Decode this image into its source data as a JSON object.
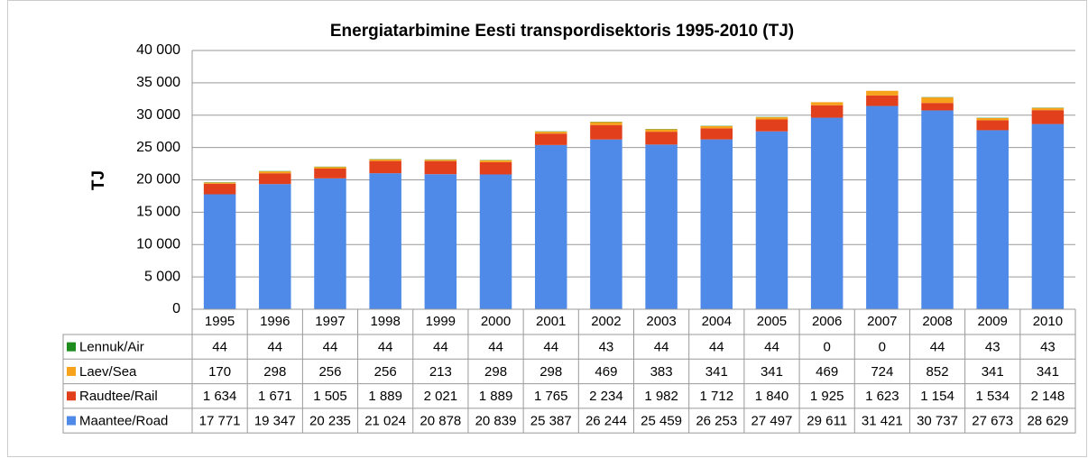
{
  "chart_data": {
    "type": "stacked_bar",
    "title": "Energiatarbimine Eesti  transpordisektoris 1995-2010 (TJ)",
    "y_label": "TJ",
    "categories": [
      "1995",
      "1996",
      "1997",
      "1998",
      "1999",
      "2000",
      "2001",
      "2002",
      "2003",
      "2004",
      "2005",
      "2006",
      "2007",
      "2008",
      "2009",
      "2010"
    ],
    "series": [
      {
        "name": "Maantee/Road",
        "color": "#4f8ae8",
        "values": [
          17771,
          19347,
          20235,
          21024,
          20878,
          20839,
          25387,
          26244,
          25459,
          26253,
          27497,
          29611,
          31421,
          30737,
          27673,
          28629
        ],
        "value_labels": [
          "17 771",
          "19 347",
          "20 235",
          "21 024",
          "20 878",
          "20 839",
          "25 387",
          "26 244",
          "25 459",
          "26 253",
          "27 497",
          "29 611",
          "31 421",
          "30 737",
          "27 673",
          "28 629"
        ]
      },
      {
        "name": "Raudtee/Rail",
        "color": "#e2401c",
        "values": [
          1634,
          1671,
          1505,
          1889,
          2021,
          1889,
          1765,
          2234,
          1982,
          1712,
          1840,
          1925,
          1623,
          1154,
          1534,
          2148
        ],
        "value_labels": [
          "1 634",
          "1 671",
          "1 505",
          "1 889",
          "2 021",
          "1 889",
          "1 765",
          "2 234",
          "1 982",
          "1 712",
          "1 840",
          "1 925",
          "1 623",
          "1 154",
          "1 534",
          "2 148"
        ]
      },
      {
        "name": "Laev/Sea",
        "color": "#f7a21b",
        "values": [
          170,
          298,
          256,
          256,
          213,
          298,
          298,
          469,
          383,
          341,
          341,
          469,
          724,
          852,
          341,
          341
        ]
      },
      {
        "name": "Lennuk/Air",
        "color": "#1e8c1e",
        "values": [
          44,
          44,
          44,
          44,
          44,
          44,
          44,
          43,
          44,
          44,
          44,
          0,
          0,
          44,
          43,
          43
        ]
      }
    ],
    "ylim": [
      0,
      40000
    ],
    "yticks": [
      0,
      {
        "value": 5000,
        "label": "5 000"
      },
      {
        "value": 10000,
        "label": "10 000"
      },
      {
        "value": 15000,
        "label": "15 000"
      },
      {
        "value": 20000,
        "label": "20 000"
      },
      {
        "value": 25000,
        "label": "25 000"
      },
      {
        "value": 30000,
        "label": "30 000"
      },
      {
        "value": 35000,
        "label": "35 000"
      },
      {
        "value": 40000,
        "label": "40 000"
      }
    ],
    "grid": true
  }
}
